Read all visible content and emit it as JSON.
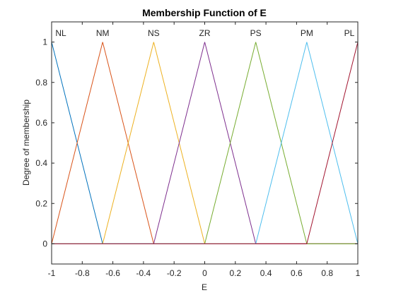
{
  "chart_data": {
    "type": "line",
    "title": "Membership Function of E",
    "xlabel": "E",
    "ylabel": "Degree of membership",
    "xlim": [
      -1,
      1
    ],
    "ylim": [
      -0.1,
      1.1
    ],
    "xticks": [
      -1,
      -0.8,
      -0.6,
      -0.4,
      -0.2,
      0,
      0.2,
      0.4,
      0.6,
      0.8,
      1
    ],
    "xtick_labels": [
      "-1",
      "-0.8",
      "-0.6",
      "-0.4",
      "-0.2",
      "0",
      "0.2",
      "0.4",
      "0.6",
      "0.8",
      "1"
    ],
    "yticks": [
      0,
      0.2,
      0.4,
      0.6,
      0.8,
      1
    ],
    "ytick_labels": [
      "0",
      "0.2",
      "0.4",
      "0.6",
      "0.8",
      "1"
    ],
    "grid": false,
    "series": [
      {
        "name": "NL",
        "color": "#0072bd",
        "x": [
          -1,
          -1,
          -0.6667,
          1
        ],
        "y": [
          0,
          1,
          0,
          0
        ]
      },
      {
        "name": "NM",
        "color": "#d95319",
        "x": [
          -1,
          -0.6667,
          -0.3333,
          1
        ],
        "y": [
          0,
          1,
          0,
          0
        ]
      },
      {
        "name": "NS",
        "color": "#edb120",
        "x": [
          -1,
          -0.6667,
          -0.3333,
          0,
          1
        ],
        "y": [
          0,
          0,
          1,
          0,
          0
        ]
      },
      {
        "name": "ZR",
        "color": "#7e2f8e",
        "x": [
          -1,
          -0.3333,
          0,
          0.3333,
          1
        ],
        "y": [
          0,
          0,
          1,
          0,
          0
        ]
      },
      {
        "name": "PS",
        "color": "#77ac30",
        "x": [
          -1,
          0,
          0.3333,
          0.6667,
          1
        ],
        "y": [
          0,
          0,
          1,
          0,
          0
        ]
      },
      {
        "name": "PM",
        "color": "#4dbeee",
        "x": [
          -1,
          0.3333,
          0.6667,
          1
        ],
        "y": [
          0,
          0,
          1,
          0
        ]
      },
      {
        "name": "PL",
        "color": "#a2142f",
        "x": [
          -1,
          0.6667,
          1,
          1
        ],
        "y": [
          0,
          0,
          1,
          0
        ]
      }
    ]
  }
}
